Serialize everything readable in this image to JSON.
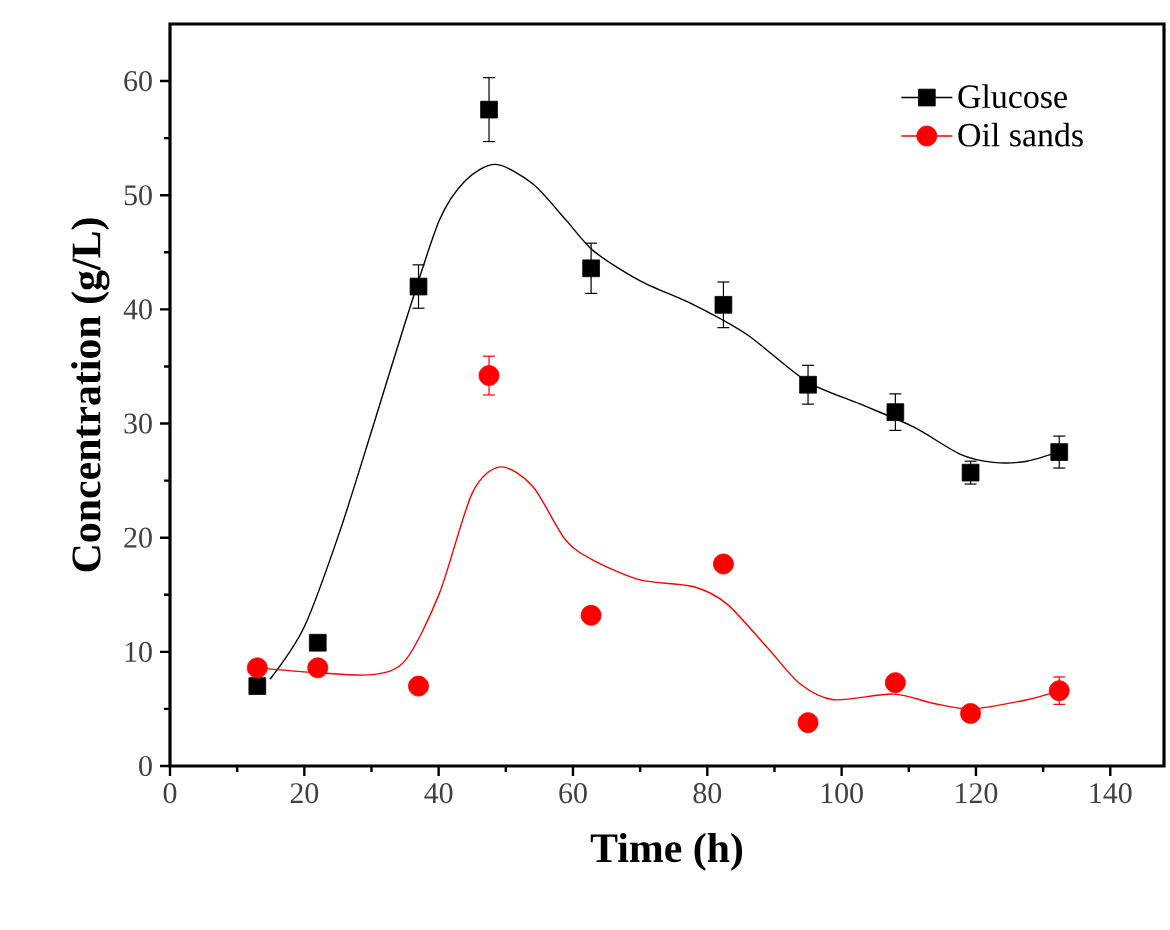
{
  "chart_data": {
    "type": "scatter",
    "xlabel": "Time (h)",
    "ylabel": "Concentration (g/L)",
    "xlim": [
      0,
      148
    ],
    "ylim": [
      0,
      65
    ],
    "xticks": [
      0,
      20,
      40,
      60,
      80,
      100,
      120,
      140
    ],
    "yticks": [
      0,
      10,
      20,
      30,
      40,
      50,
      60
    ],
    "legend": "top right",
    "grid": false,
    "series": [
      {
        "name": "Glucose",
        "marker": "square",
        "color": "#000000",
        "x": [
          13,
          22,
          37,
          47.5,
          62.7,
          82.4,
          95,
          108,
          119.2,
          132.4
        ],
        "values": [
          7.0,
          10.8,
          42.0,
          57.5,
          43.6,
          40.4,
          33.4,
          31.0,
          25.7,
          27.5
        ],
        "errors": [
          null,
          null,
          1.9,
          2.8,
          2.2,
          2.0,
          1.7,
          1.6,
          1.0,
          1.4
        ]
      },
      {
        "name": "Oil sands",
        "marker": "circle",
        "color": "#ff0000",
        "x": [
          13,
          22,
          37,
          47.5,
          62.7,
          82.4,
          95,
          108,
          119.2,
          132.4
        ],
        "values": [
          8.6,
          8.6,
          7.0,
          34.2,
          13.2,
          17.7,
          3.8,
          7.3,
          4.6,
          6.6
        ],
        "errors": [
          null,
          null,
          null,
          1.7,
          null,
          null,
          null,
          null,
          null,
          1.2
        ]
      },
      {
        "type": "line",
        "marker": "none",
        "color": "#000000",
        "x": [
          14.9,
          20,
          25.2,
          30.2,
          35.1,
          40.1,
          44,
          48.5,
          54,
          59,
          63.1,
          70,
          78,
          85.9,
          94.8,
          102.8,
          110.7,
          117.7,
          122.6,
          127.6,
          132.6
        ],
        "values": [
          7.6,
          12.2,
          20.4,
          29.7,
          39,
          47.8,
          51.3,
          52.7,
          51,
          47.8,
          45.1,
          42.5,
          40.4,
          37.8,
          33.7,
          31.7,
          29.7,
          27.3,
          26.6,
          26.7,
          27.6
        ]
      },
      {
        "type": "line",
        "marker": "none",
        "color": "#ff0000",
        "x": [
          13.1,
          21.3,
          30.2,
          35.1,
          40.1,
          45,
          49.2,
          54,
          58.9,
          63.1,
          70,
          78,
          82.9,
          88.9,
          93.8,
          98.8,
          107.7,
          113.6,
          119.2,
          127.6,
          132.4
        ],
        "values": [
          8.6,
          8.2,
          8.0,
          9.3,
          15.1,
          23.9,
          26.2,
          24.5,
          19.8,
          18.0,
          16.3,
          15.7,
          14.2,
          10.4,
          7.2,
          5.8,
          6.3,
          5.5,
          5.0,
          5.8,
          6.6
        ]
      }
    ]
  }
}
